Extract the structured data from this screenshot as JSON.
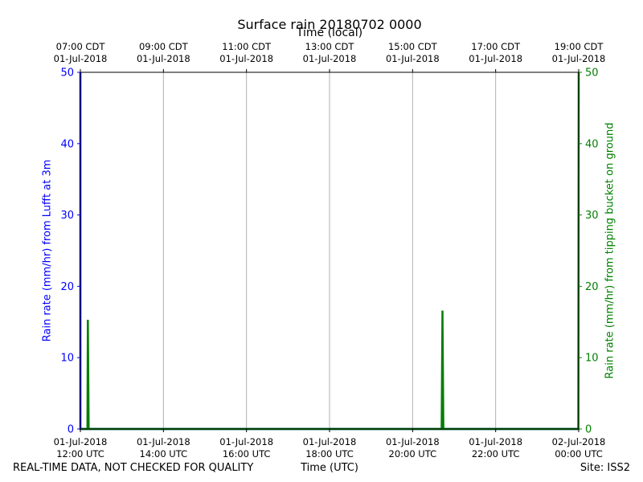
{
  "chart_data": {
    "type": "line",
    "title": "Surface rain 20180702 0000",
    "xlabel_bottom": "Time (UTC)",
    "xlabel_top": "Time (local)",
    "ylabel_left": "Rain rate (mm/hr) from Lufft at 3m",
    "ylabel_right": "Rain rate (mm/hr) from tipping bucket on ground",
    "ylim": [
      0,
      50
    ],
    "yticks": [
      0,
      10,
      20,
      30,
      40,
      50
    ],
    "xlim_hours_utc": [
      12,
      24
    ],
    "bottom_ticks": [
      {
        "line1": "01-Jul-2018",
        "line2": "12:00 UTC",
        "hour": 12
      },
      {
        "line1": "01-Jul-2018",
        "line2": "14:00 UTC",
        "hour": 14
      },
      {
        "line1": "01-Jul-2018",
        "line2": "16:00 UTC",
        "hour": 16
      },
      {
        "line1": "01-Jul-2018",
        "line2": "18:00 UTC",
        "hour": 18
      },
      {
        "line1": "01-Jul-2018",
        "line2": "20:00 UTC",
        "hour": 20
      },
      {
        "line1": "01-Jul-2018",
        "line2": "22:00 UTC",
        "hour": 22
      },
      {
        "line1": "02-Jul-2018",
        "line2": "00:00 UTC",
        "hour": 24
      }
    ],
    "top_ticks": [
      {
        "line1": "07:00 CDT",
        "line2": "01-Jul-2018",
        "hour": 12
      },
      {
        "line1": "09:00 CDT",
        "line2": "01-Jul-2018",
        "hour": 14
      },
      {
        "line1": "11:00 CDT",
        "line2": "01-Jul-2018",
        "hour": 16
      },
      {
        "line1": "13:00 CDT",
        "line2": "01-Jul-2018",
        "hour": 18
      },
      {
        "line1": "15:00 CDT",
        "line2": "01-Jul-2018",
        "hour": 20
      },
      {
        "line1": "17:00 CDT",
        "line2": "01-Jul-2018",
        "hour": 22
      },
      {
        "line1": "19:00 CDT",
        "line2": "01-Jul-2018",
        "hour": 24
      }
    ],
    "series": [
      {
        "color": "#0000ff",
        "axis": "left",
        "points": [
          [
            12.0,
            50
          ],
          [
            12.0,
            0
          ],
          [
            24.0,
            0
          ]
        ]
      },
      {
        "color": "#008000",
        "axis": "right",
        "points": [
          [
            12.0,
            0
          ],
          [
            12.17,
            0
          ],
          [
            12.18,
            15.3
          ],
          [
            12.2,
            0
          ],
          [
            20.7,
            0
          ],
          [
            20.72,
            16.6
          ],
          [
            20.74,
            0
          ],
          [
            23.99,
            0
          ],
          [
            24.0,
            50
          ]
        ]
      }
    ],
    "grid": "vertical"
  },
  "footer": {
    "left": "REAL-TIME DATA, NOT CHECKED FOR QUALITY",
    "right": "Site: ISS2"
  },
  "colors": {
    "left_axis": "#0000ff",
    "right_axis": "#008000",
    "grid": "#b0b0b0"
  }
}
